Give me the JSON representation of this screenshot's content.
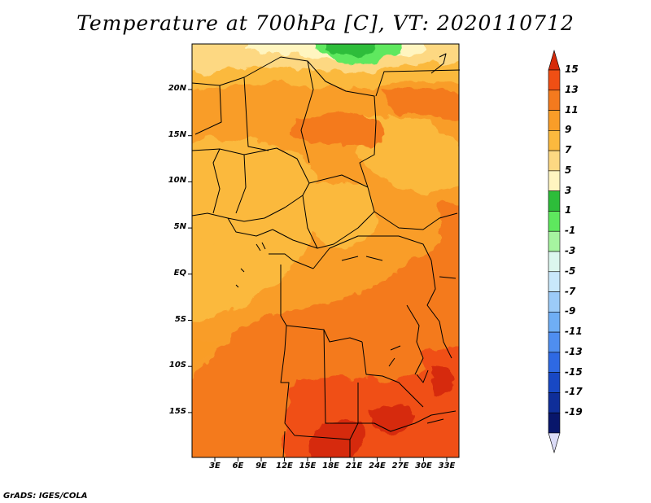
{
  "title": "Temperature at 700hPa [C], VT: 2020110712",
  "credit": "GrADS: IGES/COLA",
  "lat_labels": [
    "20N",
    "15N",
    "10N",
    "5N",
    "EQ",
    "5S",
    "10S",
    "15S"
  ],
  "lon_labels": [
    "3E",
    "6E",
    "9E",
    "12E",
    "15E",
    "18E",
    "21E",
    "24E",
    "27E",
    "30E",
    "33E"
  ],
  "colorbar": {
    "levels": [
      "15",
      "13",
      "11",
      "9",
      "7",
      "5",
      "3",
      "1",
      "-1",
      "-3",
      "-5",
      "-7",
      "-9",
      "-11",
      "-13",
      "-15",
      "-17",
      "-19"
    ],
    "colors": [
      "#d62a0a",
      "#f04f14",
      "#f47a1e",
      "#f99d28",
      "#fbb93e",
      "#fdd882",
      "#fff5c0",
      "#2dbd3a",
      "#5ee85e",
      "#a6f4a0",
      "#dcf7ee",
      "#c9e8fb",
      "#9ccbf8",
      "#6faef5",
      "#4f8ef0",
      "#2e69e3",
      "#1848c4",
      "#0f2e99",
      "#08166b",
      "#dcdcf7"
    ]
  }
}
